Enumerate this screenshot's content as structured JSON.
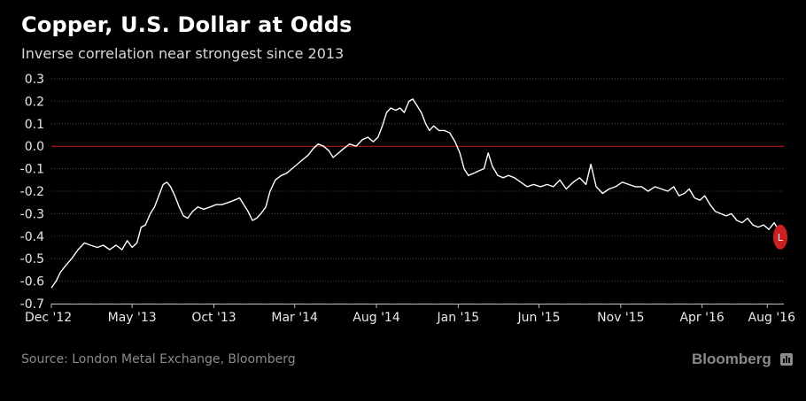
{
  "header": {
    "title": "Copper, U.S. Dollar at Odds",
    "subtitle": "Inverse correlation near strongest since 2013"
  },
  "footer": {
    "source": "Source: London Metal Exchange, Bloomberg",
    "brand": "Bloomberg"
  },
  "colors": {
    "background": "#000000",
    "line": "#ffffff",
    "zero_line": "#cc1f1f",
    "marker": "#cc1f1f",
    "grid": "#4a4a4a"
  },
  "chart_data": {
    "type": "line",
    "title": "Copper, U.S. Dollar at Odds",
    "subtitle": "Inverse correlation near strongest since 2013",
    "xlabel": "",
    "ylabel": "",
    "ylim": [
      -0.7,
      0.3
    ],
    "xlim": [
      "2012-12-01",
      "2016-09-01"
    ],
    "yticks": [
      0.3,
      0.2,
      0.1,
      0.0,
      -0.1,
      -0.2,
      -0.3,
      -0.4,
      -0.5,
      -0.6,
      -0.7
    ],
    "ytick_labels": [
      "0.3",
      "0.2",
      "0.1",
      "0.0",
      "-0.1",
      "-0.2",
      "-0.3",
      "-0.4",
      "-0.5",
      "-0.6",
      "-0.7"
    ],
    "xticks": [
      {
        "date": "2012-12-01",
        "label": "Dec '12"
      },
      {
        "date": "2013-05-01",
        "label": "May '13"
      },
      {
        "date": "2013-10-01",
        "label": "Oct '13"
      },
      {
        "date": "2014-03-01",
        "label": "Mar '14"
      },
      {
        "date": "2014-08-01",
        "label": "Aug '14"
      },
      {
        "date": "2015-01-01",
        "label": "Jan '15"
      },
      {
        "date": "2015-06-01",
        "label": "Jun '15"
      },
      {
        "date": "2015-11-01",
        "label": "Nov '15"
      },
      {
        "date": "2016-04-01",
        "label": "Apr '16"
      },
      {
        "date": "2016-08-01",
        "label": "Aug '16"
      }
    ],
    "grid": true,
    "reference_line": {
      "y": 0.0,
      "color": "#cc1f1f"
    },
    "end_marker": {
      "label": "L",
      "color": "#cc1f1f"
    },
    "series": [
      {
        "points": [
          [
            "2012-12-01",
            -0.63
          ],
          [
            "2012-12-10",
            -0.6
          ],
          [
            "2012-12-18",
            -0.56
          ],
          [
            "2012-12-28",
            -0.53
          ],
          [
            "2013-01-08",
            -0.5
          ],
          [
            "2013-01-20",
            -0.46
          ],
          [
            "2013-02-01",
            -0.43
          ],
          [
            "2013-02-12",
            -0.44
          ],
          [
            "2013-02-25",
            -0.45
          ],
          [
            "2013-03-08",
            -0.44
          ],
          [
            "2013-03-20",
            -0.46
          ],
          [
            "2013-04-01",
            -0.44
          ],
          [
            "2013-04-12",
            -0.46
          ],
          [
            "2013-04-22",
            -0.42
          ],
          [
            "2013-05-01",
            -0.45
          ],
          [
            "2013-05-10",
            -0.43
          ],
          [
            "2013-05-18",
            -0.36
          ],
          [
            "2013-05-26",
            -0.35
          ],
          [
            "2013-06-04",
            -0.3
          ],
          [
            "2013-06-12",
            -0.27
          ],
          [
            "2013-06-20",
            -0.22
          ],
          [
            "2013-06-28",
            -0.17
          ],
          [
            "2013-07-05",
            -0.16
          ],
          [
            "2013-07-12",
            -0.18
          ],
          [
            "2013-07-20",
            -0.22
          ],
          [
            "2013-07-28",
            -0.27
          ],
          [
            "2013-08-05",
            -0.31
          ],
          [
            "2013-08-13",
            -0.32
          ],
          [
            "2013-08-22",
            -0.29
          ],
          [
            "2013-09-01",
            -0.27
          ],
          [
            "2013-09-12",
            -0.28
          ],
          [
            "2013-09-24",
            -0.27
          ],
          [
            "2013-10-05",
            -0.26
          ],
          [
            "2013-10-16",
            -0.26
          ],
          [
            "2013-10-28",
            -0.25
          ],
          [
            "2013-11-08",
            -0.24
          ],
          [
            "2013-11-18",
            -0.23
          ],
          [
            "2013-11-26",
            -0.26
          ],
          [
            "2013-12-04",
            -0.29
          ],
          [
            "2013-12-12",
            -0.33
          ],
          [
            "2013-12-20",
            -0.32
          ],
          [
            "2013-12-28",
            -0.3
          ],
          [
            "2014-01-06",
            -0.27
          ],
          [
            "2014-01-14",
            -0.2
          ],
          [
            "2014-01-24",
            -0.15
          ],
          [
            "2014-02-04",
            -0.13
          ],
          [
            "2014-02-14",
            -0.12
          ],
          [
            "2014-02-24",
            -0.1
          ],
          [
            "2014-03-06",
            -0.08
          ],
          [
            "2014-03-16",
            -0.06
          ],
          [
            "2014-03-26",
            -0.04
          ],
          [
            "2014-04-05",
            -0.01
          ],
          [
            "2014-04-14",
            0.01
          ],
          [
            "2014-04-24",
            0.0
          ],
          [
            "2014-05-04",
            -0.02
          ],
          [
            "2014-05-12",
            -0.05
          ],
          [
            "2014-05-22",
            -0.03
          ],
          [
            "2014-06-01",
            -0.01
          ],
          [
            "2014-06-12",
            0.01
          ],
          [
            "2014-06-24",
            0.0
          ],
          [
            "2014-07-06",
            0.03
          ],
          [
            "2014-07-16",
            0.04
          ],
          [
            "2014-07-26",
            0.02
          ],
          [
            "2014-08-04",
            0.04
          ],
          [
            "2014-08-12",
            0.09
          ],
          [
            "2014-08-20",
            0.15
          ],
          [
            "2014-08-28",
            0.17
          ],
          [
            "2014-09-06",
            0.16
          ],
          [
            "2014-09-14",
            0.17
          ],
          [
            "2014-09-22",
            0.15
          ],
          [
            "2014-10-01",
            0.2
          ],
          [
            "2014-10-08",
            0.21
          ],
          [
            "2014-10-16",
            0.18
          ],
          [
            "2014-10-24",
            0.15
          ],
          [
            "2014-11-01",
            0.1
          ],
          [
            "2014-11-08",
            0.07
          ],
          [
            "2014-11-16",
            0.09
          ],
          [
            "2014-11-26",
            0.07
          ],
          [
            "2014-12-06",
            0.07
          ],
          [
            "2014-12-16",
            0.06
          ],
          [
            "2014-12-26",
            0.02
          ],
          [
            "2015-01-04",
            -0.03
          ],
          [
            "2015-01-12",
            -0.1
          ],
          [
            "2015-01-20",
            -0.13
          ],
          [
            "2015-01-30",
            -0.12
          ],
          [
            "2015-02-08",
            -0.11
          ],
          [
            "2015-02-18",
            -0.1
          ],
          [
            "2015-02-26",
            -0.03
          ],
          [
            "2015-03-06",
            -0.09
          ],
          [
            "2015-03-16",
            -0.13
          ],
          [
            "2015-03-26",
            -0.14
          ],
          [
            "2015-04-05",
            -0.13
          ],
          [
            "2015-04-16",
            -0.14
          ],
          [
            "2015-04-28",
            -0.16
          ],
          [
            "2015-05-10",
            -0.18
          ],
          [
            "2015-05-22",
            -0.17
          ],
          [
            "2015-06-04",
            -0.18
          ],
          [
            "2015-06-16",
            -0.17
          ],
          [
            "2015-06-28",
            -0.18
          ],
          [
            "2015-07-10",
            -0.15
          ],
          [
            "2015-07-22",
            -0.19
          ],
          [
            "2015-08-04",
            -0.16
          ],
          [
            "2015-08-16",
            -0.14
          ],
          [
            "2015-08-28",
            -0.17
          ],
          [
            "2015-09-06",
            -0.08
          ],
          [
            "2015-09-16",
            -0.18
          ],
          [
            "2015-09-28",
            -0.21
          ],
          [
            "2015-10-10",
            -0.19
          ],
          [
            "2015-10-22",
            -0.18
          ],
          [
            "2015-11-04",
            -0.16
          ],
          [
            "2015-11-16",
            -0.17
          ],
          [
            "2015-11-28",
            -0.18
          ],
          [
            "2015-12-10",
            -0.18
          ],
          [
            "2015-12-22",
            -0.2
          ],
          [
            "2016-01-04",
            -0.18
          ],
          [
            "2016-01-16",
            -0.19
          ],
          [
            "2016-01-28",
            -0.2
          ],
          [
            "2016-02-08",
            -0.18
          ],
          [
            "2016-02-18",
            -0.22
          ],
          [
            "2016-02-28",
            -0.21
          ],
          [
            "2016-03-08",
            -0.19
          ],
          [
            "2016-03-18",
            -0.23
          ],
          [
            "2016-03-28",
            -0.24
          ],
          [
            "2016-04-06",
            -0.22
          ],
          [
            "2016-04-16",
            -0.26
          ],
          [
            "2016-04-26",
            -0.29
          ],
          [
            "2016-05-06",
            -0.3
          ],
          [
            "2016-05-16",
            -0.31
          ],
          [
            "2016-05-26",
            -0.3
          ],
          [
            "2016-06-05",
            -0.33
          ],
          [
            "2016-06-15",
            -0.34
          ],
          [
            "2016-06-25",
            -0.32
          ],
          [
            "2016-07-05",
            -0.35
          ],
          [
            "2016-07-15",
            -0.36
          ],
          [
            "2016-07-25",
            -0.35
          ],
          [
            "2016-08-04",
            -0.37
          ],
          [
            "2016-08-14",
            -0.34
          ],
          [
            "2016-08-24",
            -0.38
          ],
          [
            "2016-09-01",
            -0.4
          ]
        ]
      }
    ]
  }
}
